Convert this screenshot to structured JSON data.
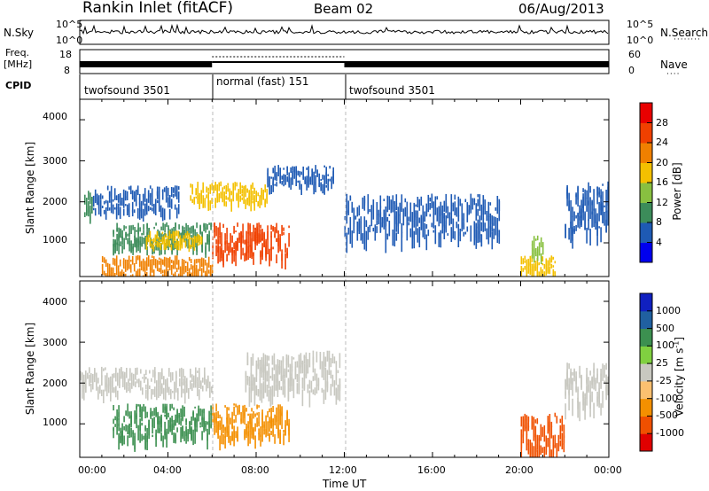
{
  "header": {
    "station": "Rankin Inlet (fitACF)",
    "beam": "Beam 02",
    "date": "06/Aug/2013"
  },
  "labels": {
    "nsky": "N.Sky",
    "nsearch": "N.Search",
    "freq": "Freq.",
    "freq_unit": "[MHz]",
    "nave": "Nave",
    "cpid": "CPID",
    "slant_range": "Slant Range [km]",
    "time_ut": "Time UT",
    "power": "Power [dB]",
    "velocity_main": "Velocity [m s",
    "velocity_sup": "-1",
    "velocity_close": "]"
  },
  "ticks": {
    "noise_left": [
      "10^5",
      "10^0"
    ],
    "noise_right": [
      "10^5",
      "10^0"
    ],
    "freq_left": [
      "18",
      "8"
    ],
    "nave_right": [
      "60",
      "0"
    ],
    "range": [
      "4000",
      "3000",
      "2000",
      "1000"
    ],
    "time": [
      "00:00",
      "04:00",
      "08:00",
      "12:00",
      "16:00",
      "20:00",
      "00:00"
    ]
  },
  "cpid_segments": [
    {
      "label": "twofsound 3501",
      "start_hour": 0,
      "end_hour": 6
    },
    {
      "label": "normal (fast) 151",
      "start_hour": 6,
      "end_hour": 12
    },
    {
      "label": "twofsound 3501",
      "start_hour": 12,
      "end_hour": 24
    }
  ],
  "colors": {
    "power": [
      "#0000ee",
      "#1e5ab4",
      "#3c8c5a",
      "#88c040",
      "#f4c000",
      "#f08000",
      "#f04000",
      "#e80000"
    ],
    "velocity": [
      "#e00000",
      "#f05000",
      "#f49000",
      "#fbc070",
      "#c8c8c0",
      "#80d040",
      "#3c9050",
      "#2060a0",
      "#1020c0"
    ]
  },
  "chart_data": [
    {
      "type": "heatmap",
      "title": "Power",
      "xlabel": "Time UT",
      "ylabel": "Slant Range [km]",
      "xlim": [
        "00:00",
        "24:00"
      ],
      "ylim": [
        180,
        4500
      ],
      "legend": "right",
      "colorbar": {
        "label": "Power [dB]",
        "ticks": [
          "28",
          "24",
          "20",
          "16",
          "12",
          "8",
          "4"
        ],
        "range": [
          0,
          32
        ]
      },
      "regions": [
        {
          "start_hour": 0.2,
          "end_hour": 0.6,
          "range_km": [
            1700,
            2300
          ],
          "value_db": 12
        },
        {
          "start_hour": 0.6,
          "end_hour": 4.5,
          "range_km": [
            1800,
            2400
          ],
          "value_db": 8
        },
        {
          "start_hour": 1.5,
          "end_hour": 6.0,
          "range_km": [
            900,
            1500
          ],
          "value_db": 10
        },
        {
          "start_hour": 3.0,
          "end_hour": 5.5,
          "range_km": [
            950,
            1300
          ],
          "value_db": 18
        },
        {
          "start_hour": 1.0,
          "end_hour": 6.0,
          "range_km": [
            200,
            700
          ],
          "value_db": 24
        },
        {
          "start_hour": 6.0,
          "end_hour": 9.5,
          "range_km": [
            700,
            1500
          ],
          "value_db": 26
        },
        {
          "start_hour": 5.0,
          "end_hour": 8.5,
          "range_km": [
            2000,
            2500
          ],
          "value_db": 18
        },
        {
          "start_hour": 8.5,
          "end_hour": 11.5,
          "range_km": [
            2400,
            2900
          ],
          "value_db": 8
        },
        {
          "start_hour": 12.0,
          "end_hour": 19.0,
          "range_km": [
            1200,
            2200
          ],
          "value_db": 6
        },
        {
          "start_hour": 20.0,
          "end_hour": 21.6,
          "range_km": [
            300,
            700
          ],
          "value_db": 20
        },
        {
          "start_hour": 20.5,
          "end_hour": 21.0,
          "range_km": [
            700,
            1200
          ],
          "value_db": 16
        },
        {
          "start_hour": 22.0,
          "end_hour": 24.0,
          "range_km": [
            1300,
            2500
          ],
          "value_db": 8
        }
      ]
    },
    {
      "type": "heatmap",
      "title": "Velocity",
      "xlabel": "Time UT",
      "ylabel": "Slant Range [km]",
      "xlim": [
        "00:00",
        "24:00"
      ],
      "ylim": [
        180,
        4500
      ],
      "legend": "right",
      "colorbar": {
        "label": "Velocity [m s-1]",
        "ticks": [
          "1000",
          "500",
          "100",
          "25",
          "-25",
          "-100",
          "-500",
          "-1000"
        ]
      },
      "regions": [
        {
          "start_hour": 0.0,
          "end_hour": 6.0,
          "range_km": [
            1800,
            2400
          ],
          "value_ms": 0
        },
        {
          "start_hour": 1.5,
          "end_hour": 6.0,
          "range_km": [
            700,
            1500
          ],
          "value_ms": 200
        },
        {
          "start_hour": 6.0,
          "end_hour": 9.5,
          "range_km": [
            700,
            1500
          ],
          "value_ms": -200
        },
        {
          "start_hour": 7.5,
          "end_hour": 11.8,
          "range_km": [
            1800,
            2800
          ],
          "value_ms": 0
        },
        {
          "start_hour": 20.0,
          "end_hour": 22.0,
          "range_km": [
            300,
            1300
          ],
          "value_ms": -600
        },
        {
          "start_hour": 22.0,
          "end_hour": 24.0,
          "range_km": [
            1500,
            2500
          ],
          "value_ms": 0
        }
      ]
    }
  ]
}
